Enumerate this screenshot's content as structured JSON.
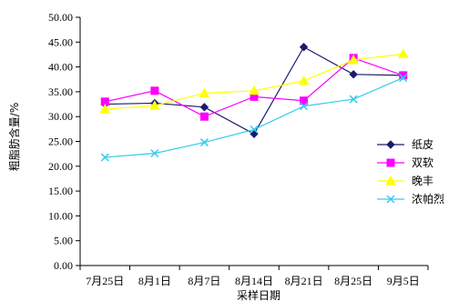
{
  "chart_data": {
    "type": "line",
    "title": "",
    "xlabel": "采样日期",
    "ylabel": "粗脂肪含量/%",
    "categories": [
      "7月25日",
      "8月1日",
      "8月7日",
      "8月14日",
      "8月21日",
      "8月25日",
      "9月5日"
    ],
    "ylim": [
      0,
      50
    ],
    "yticks": [
      "0.00",
      "5.00",
      "10.00",
      "15.00",
      "20.00",
      "25.00",
      "30.00",
      "35.00",
      "40.00",
      "45.00",
      "50.00"
    ],
    "grid": false,
    "legend_position": "right",
    "series": [
      {
        "name": "纸皮",
        "color": "#1a1a6e",
        "marker": "diamond",
        "values": [
          32.5,
          32.7,
          31.9,
          26.5,
          44.0,
          38.5,
          38.3
        ]
      },
      {
        "name": "双软",
        "color": "#ff00ff",
        "marker": "square",
        "values": [
          33.0,
          35.2,
          30.0,
          34.0,
          33.2,
          41.8,
          38.3
        ]
      },
      {
        "name": "晚丰",
        "color": "#ffff00",
        "marker": "triangle",
        "values": [
          31.5,
          32.2,
          34.7,
          35.2,
          37.2,
          41.4,
          42.6
        ]
      },
      {
        "name": "浓帕烈",
        "color": "#33ccee",
        "marker": "x",
        "values": [
          21.8,
          22.6,
          24.8,
          27.4,
          32.1,
          33.5,
          37.8
        ]
      }
    ]
  }
}
